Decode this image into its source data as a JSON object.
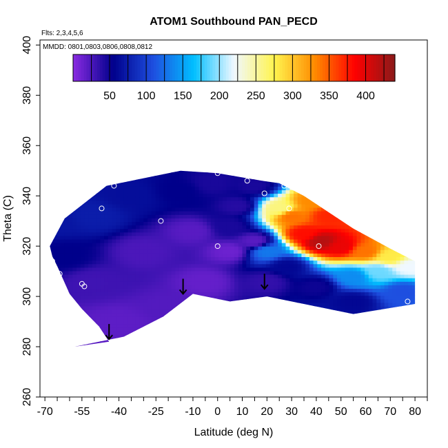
{
  "chart_data": {
    "type": "heatmap",
    "title": "ATOM1 Southbound PAN_PECD",
    "note_flights": "Flts: 2,3,4,5,6",
    "note_dates": "MMDD: 0801,0803,0806,0808,0812",
    "xlabel": "Latitude (deg N)",
    "ylabel": "Theta (C)",
    "xlim": [
      -72,
      85
    ],
    "ylim": [
      260,
      402
    ],
    "xticks": [
      -70,
      -55,
      -40,
      -25,
      -10,
      0,
      10,
      20,
      30,
      40,
      50,
      60,
      70,
      80
    ],
    "yticks": [
      260,
      280,
      300,
      320,
      340,
      360,
      380,
      400
    ],
    "colorbar": {
      "range": [
        0,
        440
      ],
      "ticks": [
        50,
        100,
        150,
        200,
        250,
        300,
        350,
        400
      ],
      "colors": [
        "#8a2be2",
        "#00008b",
        "#1e4fe0",
        "#00bfff",
        "#f0f8ff",
        "#fff44f",
        "#ff8c00",
        "#ff0000",
        "#8b1a1a"
      ]
    },
    "field_outline_lat": [
      -58,
      -38,
      -22,
      -10,
      5,
      20,
      55,
      80,
      80,
      70,
      55,
      35,
      25,
      18,
      0,
      -15,
      -30,
      -45,
      -62,
      -68,
      -67,
      -65,
      -60,
      -55,
      -48,
      -44
    ],
    "field_outline_theta": [
      280,
      284,
      292,
      301,
      298,
      300,
      293,
      297,
      314,
      319,
      327,
      340,
      345,
      346,
      349,
      350,
      347,
      344,
      331,
      320,
      316,
      312,
      301,
      295,
      288,
      282
    ],
    "field_anchors": [
      {
        "lat": -60,
        "theta": 284,
        "value": 20
      },
      {
        "lat": -40,
        "theta": 290,
        "value": 18
      },
      {
        "lat": -20,
        "theta": 296,
        "value": 22
      },
      {
        "lat": -5,
        "theta": 306,
        "value": 15
      },
      {
        "lat": 5,
        "theta": 318,
        "value": 12
      },
      {
        "lat": 15,
        "theta": 322,
        "value": 20
      },
      {
        "lat": -10,
        "theta": 326,
        "value": 20
      },
      {
        "lat": -30,
        "theta": 318,
        "value": 25
      },
      {
        "lat": -50,
        "theta": 306,
        "value": 30
      },
      {
        "lat": -62,
        "theta": 316,
        "value": 55
      },
      {
        "lat": -66,
        "theta": 330,
        "value": 70
      },
      {
        "lat": -50,
        "theta": 332,
        "value": 75
      },
      {
        "lat": -35,
        "theta": 340,
        "value": 65
      },
      {
        "lat": -15,
        "theta": 342,
        "value": 55
      },
      {
        "lat": -2,
        "theta": 345,
        "value": 45
      },
      {
        "lat": 8,
        "theta": 336,
        "value": 40
      },
      {
        "lat": 15,
        "theta": 344,
        "value": 45
      },
      {
        "lat": 5,
        "theta": 328,
        "value": 45
      },
      {
        "lat": 20,
        "theta": 318,
        "value": 130
      },
      {
        "lat": 25,
        "theta": 335,
        "value": 260
      },
      {
        "lat": 30,
        "theta": 332,
        "value": 340
      },
      {
        "lat": 35,
        "theta": 325,
        "value": 380
      },
      {
        "lat": 42,
        "theta": 322,
        "value": 420
      },
      {
        "lat": 50,
        "theta": 320,
        "value": 395
      },
      {
        "lat": 45,
        "theta": 332,
        "value": 370
      },
      {
        "lat": 38,
        "theta": 338,
        "value": 330
      },
      {
        "lat": 60,
        "theta": 318,
        "value": 340
      },
      {
        "lat": 70,
        "theta": 316,
        "value": 280
      },
      {
        "lat": 78,
        "theta": 312,
        "value": 220
      },
      {
        "lat": 65,
        "theta": 310,
        "value": 190
      },
      {
        "lat": 55,
        "theta": 308,
        "value": 140
      },
      {
        "lat": 75,
        "theta": 302,
        "value": 110
      },
      {
        "lat": 40,
        "theta": 304,
        "value": 50
      },
      {
        "lat": 20,
        "theta": 306,
        "value": 35
      },
      {
        "lat": 55,
        "theta": 298,
        "value": 60
      },
      {
        "lat": 28,
        "theta": 312,
        "value": 60
      }
    ],
    "sample_circles": [
      {
        "lat": -68,
        "theta": 311
      },
      {
        "lat": -67,
        "theta": 314
      },
      {
        "lat": -64,
        "theta": 309
      },
      {
        "lat": -55,
        "theta": 305
      },
      {
        "lat": -54,
        "theta": 304
      },
      {
        "lat": -47,
        "theta": 335
      },
      {
        "lat": -42,
        "theta": 344
      },
      {
        "lat": -23,
        "theta": 330
      },
      {
        "lat": -5,
        "theta": 351
      },
      {
        "lat": 0,
        "theta": 349
      },
      {
        "lat": 0,
        "theta": 320
      },
      {
        "lat": 12,
        "theta": 346
      },
      {
        "lat": 19,
        "theta": 341
      },
      {
        "lat": 27,
        "theta": 344
      },
      {
        "lat": 29,
        "theta": 335
      },
      {
        "lat": 33,
        "theta": 345
      },
      {
        "lat": 41,
        "theta": 320
      },
      {
        "lat": 77,
        "theta": 298
      }
    ],
    "arrows": [
      {
        "lat": -44,
        "theta": 283
      },
      {
        "lat": -14,
        "theta": 301
      },
      {
        "lat": 19,
        "theta": 303
      }
    ]
  }
}
